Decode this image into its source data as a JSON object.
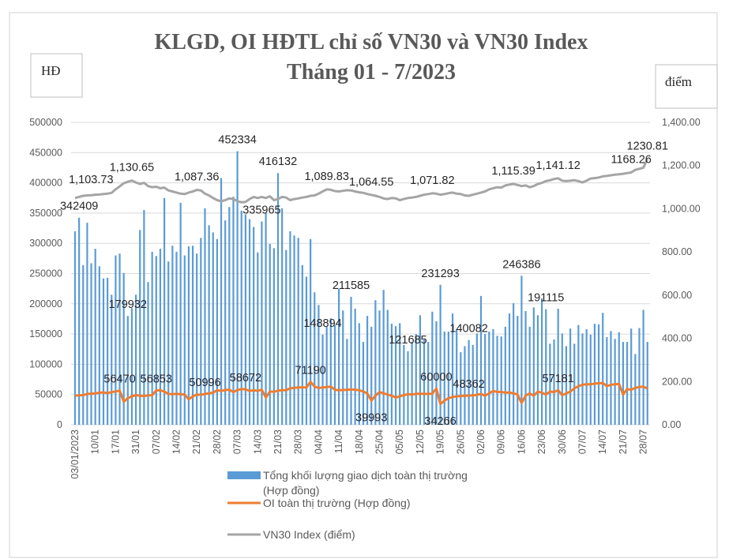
{
  "chart_data": {
    "type": "bar+line",
    "title": [
      "KLGD, OI HĐTL chỉ số VN30 và VN30 Index",
      "Tháng 01 - 7/2023"
    ],
    "left_axis": {
      "unit_label": "HĐ",
      "ylim": [
        0,
        500000
      ],
      "ticks": [
        "0",
        "50000",
        "100000",
        "150000",
        "200000",
        "250000",
        "300000",
        "350000",
        "400000",
        "450000",
        "500000"
      ]
    },
    "right_axis": {
      "unit_label": "điểm",
      "ylim": [
        0,
        1400
      ],
      "ticks": [
        "0.00",
        "200.00",
        "400.00",
        "600.00",
        "800.00",
        "1,000.00",
        "1,200.00",
        "1,400.00"
      ]
    },
    "x_tick_labels": [
      "03/01/2023",
      "10/01",
      "17/01",
      "31/01",
      "07/02",
      "14/02",
      "21/02",
      "28/02",
      "07/03",
      "14/03",
      "21/03",
      "28/03",
      "04/04",
      "11/04",
      "18/04",
      "25/04",
      "05/05",
      "12/05",
      "19/05",
      "26/05",
      "02/06",
      "09/06",
      "16/06",
      "23/06",
      "30/06",
      "07/07",
      "14/07",
      "21/07",
      "28/07"
    ],
    "grid": true,
    "legend_placement": "bottom",
    "series": [
      {
        "name": "Tổng khối lượng giao dịch toàn thị trường (Hợp đồng)",
        "legend_lines": [
          "Tổng khối lượng giao dịch toàn thị trường",
          "(Hợp đồng)"
        ],
        "type": "bar",
        "axis": "left",
        "color": "#5b9bd5",
        "values": [
          320000,
          342409,
          264000,
          334000,
          267000,
          291000,
          262000,
          242000,
          243000,
          215000,
          280000,
          283000,
          251000,
          179932,
          193000,
          215000,
          322000,
          355000,
          236000,
          286000,
          279000,
          291000,
          375000,
          270000,
          296000,
          286000,
          367000,
          280000,
          295000,
          296000,
          283000,
          309000,
          358000,
          330000,
          318000,
          307000,
          408000,
          338000,
          360000,
          377000,
          452334,
          354000,
          348000,
          340000,
          327000,
          285000,
          335965,
          350000,
          299000,
          292000,
          416132,
          358000,
          289000,
          320000,
          313000,
          309000,
          264000,
          245000,
          307000,
          219000,
          198000,
          148894,
          162000,
          176000,
          165000,
          225000,
          189000,
          142000,
          211585,
          192000,
          168000,
          137000,
          180000,
          162000,
          206000,
          189000,
          223000,
          190000,
          167000,
          163000,
          168000,
          132000,
          121685,
          137000,
          150000,
          181000,
          141000,
          137000,
          187000,
          171000,
          231293,
          154000,
          154000,
          184000,
          158000,
          120000,
          130000,
          140082,
          132000,
          151000,
          213000,
          150000,
          154000,
          158000,
          147000,
          146000,
          162000,
          184000,
          201000,
          180000,
          246386,
          188000,
          162000,
          194000,
          181000,
          209000,
          191115,
          134000,
          141000,
          192000,
          151000,
          130000,
          159000,
          134000,
          165000,
          151000,
          158000,
          149000,
          167000,
          166000,
          185000,
          145000,
          155000,
          142000,
          153000,
          137000,
          137000,
          159000,
          117000,
          160000,
          190000,
          137000
        ]
      },
      {
        "name": "OI toàn thị trường (Hợp đồng)",
        "type": "line",
        "axis": "left",
        "color": "#ed7d31",
        "values": [
          48000,
          48500,
          49000,
          51000,
          51500,
          52000,
          53000,
          53500,
          52500,
          54000,
          55000,
          56470,
          38000,
          44000,
          47000,
          49000,
          48000,
          47500,
          48500,
          49000,
          56853,
          57000,
          55000,
          51000,
          50500,
          51000,
          50500,
          50000,
          42000,
          47000,
          50000,
          49500,
          50996,
          52000,
          53000,
          57000,
          56000,
          57500,
          58000,
          54000,
          57500,
          59000,
          58672,
          56000,
          57000,
          56000,
          58000,
          45000,
          55000,
          54500,
          56500,
          57000,
          57000,
          60500,
          61000,
          61500,
          62000,
          61500,
          71190,
          63000,
          61000,
          61500,
          62500,
          63000,
          58000,
          57000,
          57500,
          58000,
          58500,
          58000,
          57000,
          55000,
          52000,
          39993,
          48000,
          54000,
          52000,
          50000,
          48000,
          45000,
          47000,
          49000,
          50500,
          50000,
          51000,
          51500,
          51000,
          51000,
          51500,
          60000,
          34266,
          40000,
          44000,
          46000,
          47000,
          47500,
          48000,
          48362,
          48500,
          49500,
          51000,
          48000,
          52000,
          56000,
          54000,
          54500,
          53000,
          53500,
          52000,
          50000,
          36000,
          48000,
          52000,
          48000,
          55000,
          53000,
          50000,
          55000,
          54000,
          57181,
          49000,
          52000,
          55000,
          60000,
          64000,
          66000,
          67000,
          67000,
          68000,
          68500,
          69000,
          64000,
          66000,
          67000,
          67500,
          50000,
          59000,
          58000,
          61000,
          62500,
          63000,
          60000
        ]
      },
      {
        "name": "VN30 Index (điểm)",
        "type": "line",
        "axis": "right",
        "color": "#a5a5a5",
        "values": [
          1050,
          1055,
          1060,
          1062,
          1063,
          1065,
          1066,
          1068,
          1070,
          1074,
          1090,
          1103.73,
          1118,
          1125,
          1130.65,
          1122,
          1115,
          1120,
          1105,
          1100,
          1102,
          1095,
          1098,
          1085,
          1080,
          1075,
          1070,
          1068,
          1075,
          1080,
          1087.36,
          1085,
          1070,
          1062,
          1050,
          1040,
          1035,
          1040,
          1048,
          1045,
          1035,
          1030,
          1032,
          1045,
          1055,
          1050,
          1055,
          1050,
          1058,
          1040,
          1045,
          1055,
          1052,
          1040,
          1045,
          1048,
          1052,
          1055,
          1060,
          1062,
          1070,
          1080,
          1089.83,
          1088,
          1082,
          1080,
          1083,
          1086,
          1085,
          1080,
          1076,
          1074,
          1068,
          1064.55,
          1060,
          1055,
          1048,
          1045,
          1050,
          1048,
          1040,
          1045,
          1050,
          1052,
          1055,
          1060,
          1065,
          1068,
          1071.82,
          1070,
          1065,
          1068,
          1072,
          1075,
          1070,
          1068,
          1062,
          1060,
          1065,
          1070,
          1075,
          1080,
          1090,
          1095,
          1100,
          1098,
          1108,
          1112,
          1115.39,
          1110,
          1105,
          1108,
          1100,
          1105,
          1115,
          1120,
          1128,
          1132,
          1138,
          1141.12,
          1130,
          1128,
          1130,
          1132,
          1128,
          1122,
          1130,
          1140,
          1142,
          1145,
          1150,
          1152,
          1155,
          1158,
          1160,
          1162,
          1165,
          1168.26,
          1180,
          1185,
          1190,
          1230.81
        ]
      }
    ],
    "annotations": [
      {
        "series": 0,
        "index": 1,
        "text": "342409",
        "position": "above"
      },
      {
        "series": 0,
        "index": 13,
        "text": "179932",
        "position": "above"
      },
      {
        "series": 0,
        "index": 40,
        "text": "452334",
        "position": "above"
      },
      {
        "series": 0,
        "index": 46,
        "text": "335965",
        "position": "above"
      },
      {
        "series": 0,
        "index": 50,
        "text": "416132",
        "position": "above"
      },
      {
        "series": 0,
        "index": 61,
        "text": "148894",
        "position": "above"
      },
      {
        "series": 0,
        "index": 68,
        "text": "211585",
        "position": "above"
      },
      {
        "series": 0,
        "index": 82,
        "text": "121685",
        "position": "above"
      },
      {
        "series": 0,
        "index": 90,
        "text": "231293",
        "position": "above"
      },
      {
        "series": 0,
        "index": 97,
        "text": "140082",
        "position": "above"
      },
      {
        "series": 0,
        "index": 110,
        "text": "246386",
        "position": "above"
      },
      {
        "series": 0,
        "index": 116,
        "text": "191115",
        "position": "above"
      },
      {
        "series": 1,
        "index": 11,
        "text": "56470",
        "position": "above"
      },
      {
        "series": 1,
        "index": 20,
        "text": "56853",
        "position": "above"
      },
      {
        "series": 1,
        "index": 32,
        "text": "50996",
        "position": "above"
      },
      {
        "series": 1,
        "index": 42,
        "text": "58672",
        "position": "above"
      },
      {
        "series": 1,
        "index": 58,
        "text": "71190",
        "position": "above"
      },
      {
        "series": 1,
        "index": 73,
        "text": "39993",
        "position": "below"
      },
      {
        "series": 1,
        "index": 89,
        "text": "60000",
        "position": "above"
      },
      {
        "series": 1,
        "index": 90,
        "text": "34266",
        "position": "below"
      },
      {
        "series": 1,
        "index": 97,
        "text": "48362",
        "position": "above"
      },
      {
        "series": 1,
        "index": 119,
        "text": "57181",
        "position": "above"
      },
      {
        "series": 2,
        "index": 11,
        "text": "1,103.73",
        "position": "left"
      },
      {
        "series": 2,
        "index": 14,
        "text": "1,130.65",
        "position": "above"
      },
      {
        "series": 2,
        "index": 30,
        "text": "1,087.36",
        "position": "above"
      },
      {
        "series": 2,
        "index": 62,
        "text": "1,089.83",
        "position": "above"
      },
      {
        "series": 2,
        "index": 73,
        "text": "1,064.55",
        "position": "above"
      },
      {
        "series": 2,
        "index": 88,
        "text": "1,071.82",
        "position": "above"
      },
      {
        "series": 2,
        "index": 108,
        "text": "1,115.39",
        "position": "above"
      },
      {
        "series": 2,
        "index": 119,
        "text": "1,141.12",
        "position": "above"
      },
      {
        "series": 2,
        "index": 137,
        "text": "1168.26",
        "position": "above"
      },
      {
        "series": 2,
        "index": 141,
        "text": "1230.81",
        "position": "above"
      }
    ]
  }
}
